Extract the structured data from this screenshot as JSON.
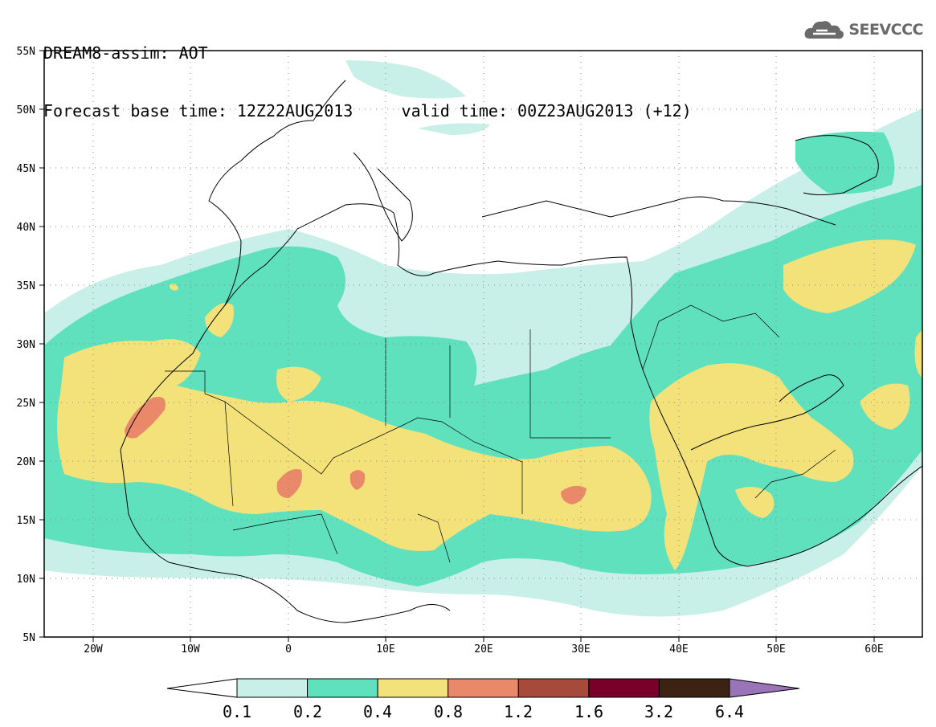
{
  "header": {
    "title_line1": "DREAM8-assim: AOT",
    "forecast_label": "Forecast base time: 12Z22AUG2013",
    "valid_label": "valid time: 00Z23AUG2013 (+12)"
  },
  "logo": {
    "text": "SEEVCCC",
    "icon": "cloud-icon"
  },
  "map": {
    "lat_labels": [
      "55N",
      "50N",
      "45N",
      "40N",
      "35N",
      "30N",
      "25N",
      "20N",
      "15N",
      "10N",
      "5N"
    ],
    "lon_labels": [
      "20W",
      "10W",
      "0",
      "10E",
      "20E",
      "30E",
      "40E",
      "50E",
      "60E"
    ],
    "extent": {
      "lon_min": -25,
      "lon_max": 65,
      "lat_min": 5,
      "lat_max": 55
    },
    "variable": "AOT"
  },
  "colorbar": {
    "levels": [
      "0.1",
      "0.2",
      "0.4",
      "0.8",
      "1.2",
      "1.6",
      "3.2",
      "6.4"
    ],
    "colors": [
      "#c8efe8",
      "#5fe1bd",
      "#f3e27a",
      "#e9896a",
      "#a64a3c",
      "#7a0029",
      "#3c2212",
      "#9a74b8"
    ],
    "low_extend_color": "#ffffff"
  }
}
